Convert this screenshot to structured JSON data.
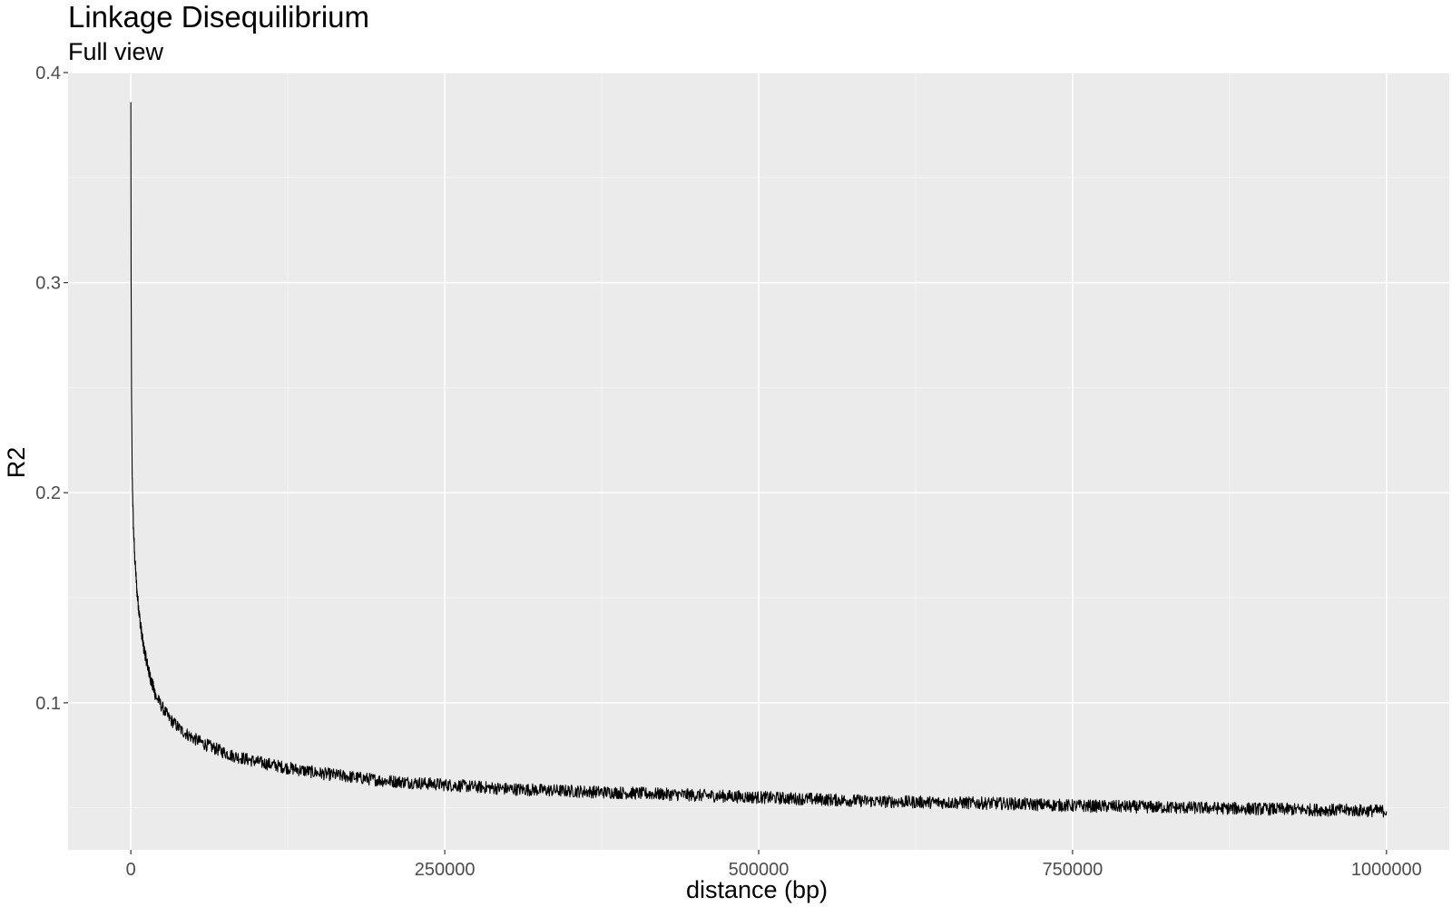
{
  "chart_data": {
    "type": "line",
    "title": "Linkage Disequilibrium",
    "subtitle": "Full view",
    "xlabel": "distance (bp)",
    "ylabel": "R2",
    "xlim": [
      -50000,
      1050000
    ],
    "ylim": [
      0.03,
      0.4
    ],
    "xticks": [
      0,
      250000,
      500000,
      750000,
      1000000
    ],
    "xtick_labels": [
      "0",
      "250000",
      "500000",
      "750000",
      "1000000"
    ],
    "yticks": [
      0.1,
      0.2,
      0.3,
      0.4
    ],
    "ytick_labels": [
      "0.1",
      "0.2",
      "0.3",
      "0.4"
    ],
    "grid": true,
    "background": "#ebebeb",
    "grid_color": "#ffffff",
    "line_color": "#000000",
    "series": [
      {
        "name": "R2",
        "x": [
          0,
          200,
          500,
          1000,
          2000,
          3000,
          5000,
          7500,
          10000,
          15000,
          20000,
          30000,
          40000,
          50000,
          60000,
          80000,
          100000,
          125000,
          150000,
          200000,
          250000,
          300000,
          350000,
          400000,
          500000,
          600000,
          700000,
          750000,
          800000,
          900000,
          1000000
        ],
        "y": [
          0.385,
          0.3,
          0.25,
          0.21,
          0.185,
          0.17,
          0.152,
          0.138,
          0.127,
          0.113,
          0.103,
          0.093,
          0.087,
          0.083,
          0.08,
          0.075,
          0.072,
          0.069,
          0.0665,
          0.063,
          0.061,
          0.059,
          0.058,
          0.057,
          0.055,
          0.053,
          0.052,
          0.051,
          0.0505,
          0.0495,
          0.0485
        ]
      }
    ],
    "noise_amplitude": 0.003
  }
}
